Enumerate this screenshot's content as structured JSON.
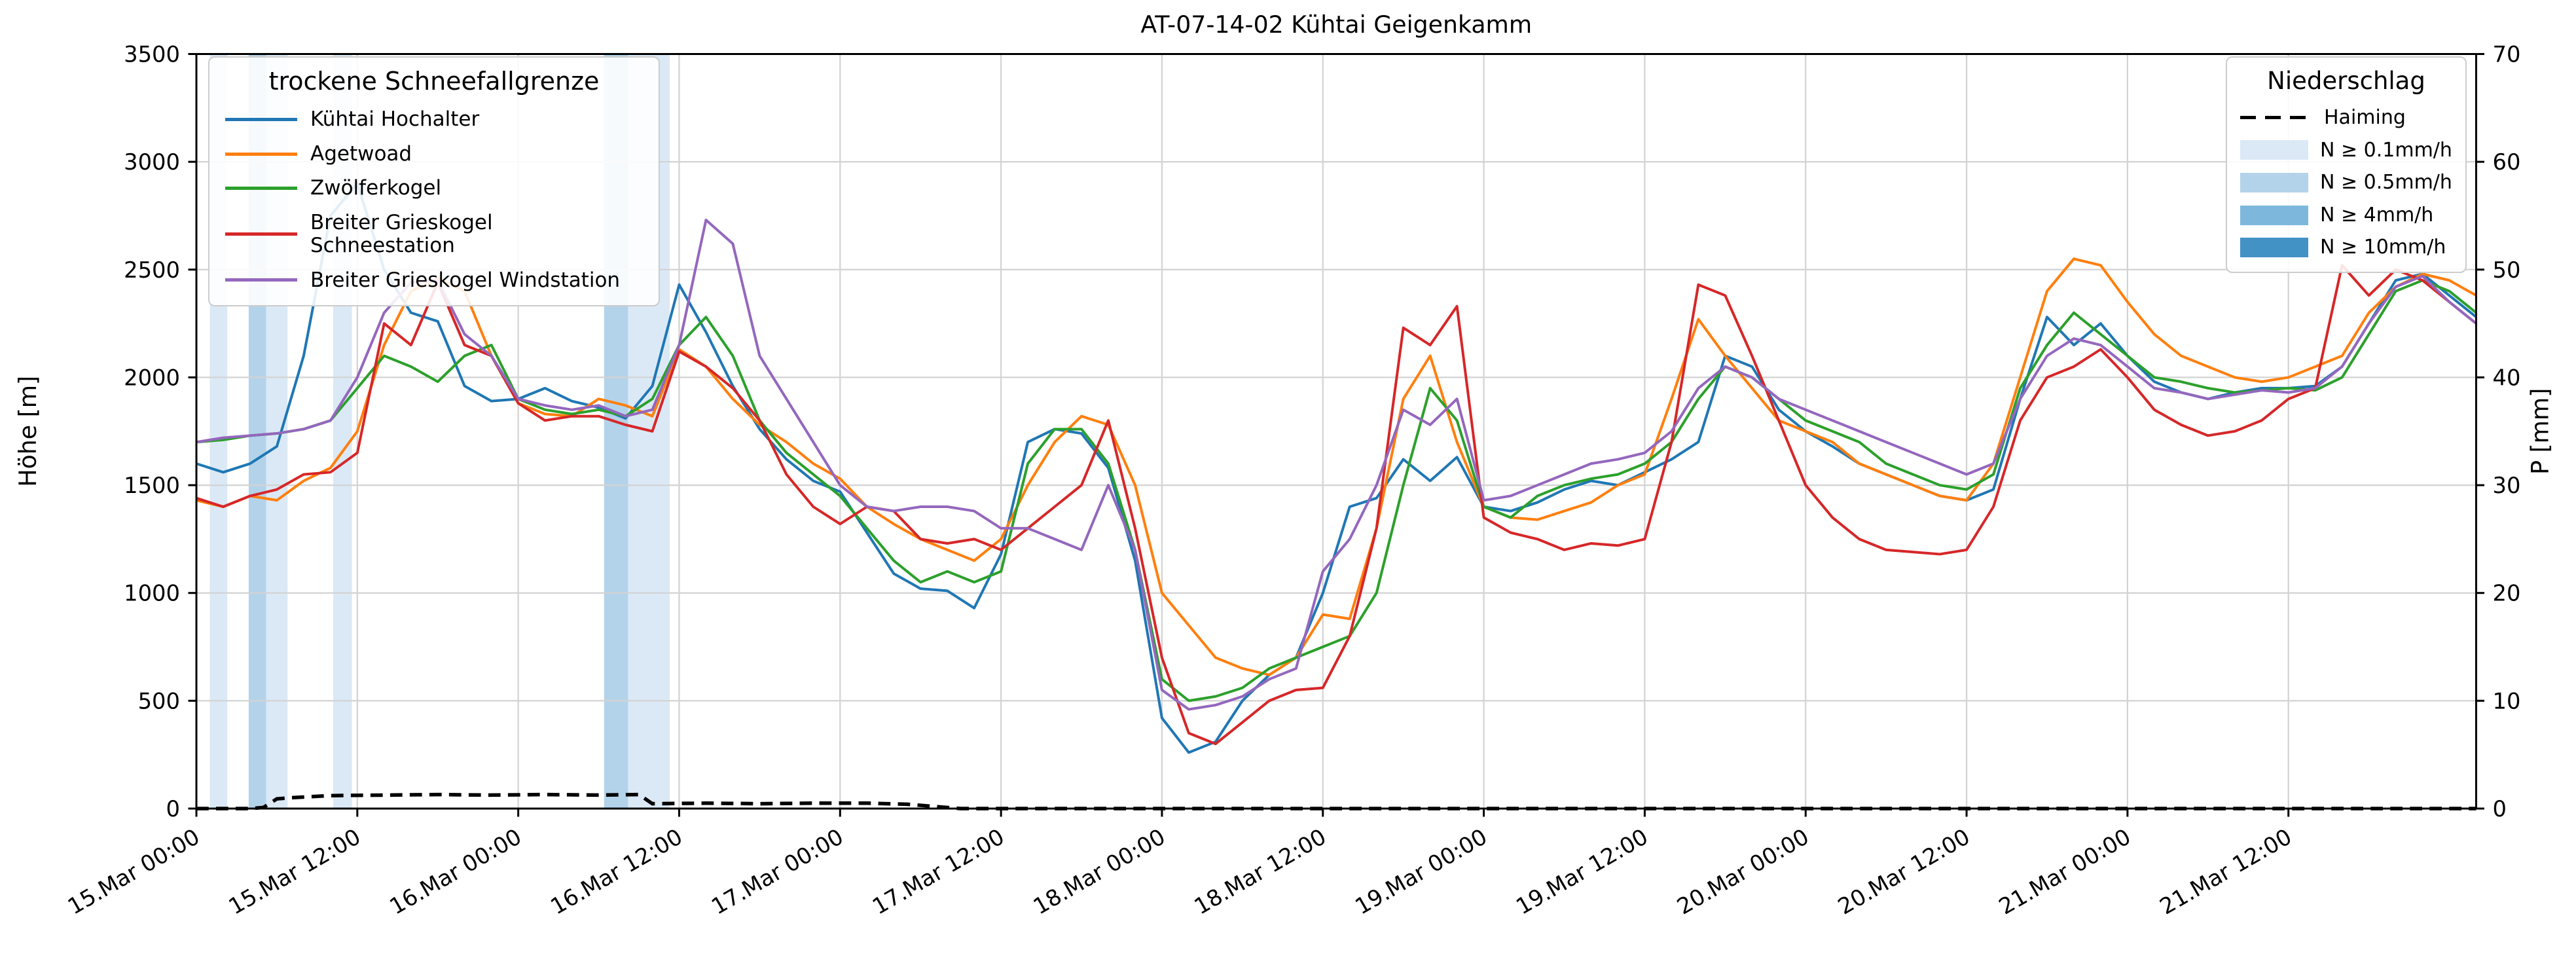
{
  "title": "AT-07-14-02 Kühtai Geigenkamm",
  "axes": {
    "y_left": {
      "label": "Höhe [m]",
      "min": 0,
      "max": 3500,
      "ticks": [
        0,
        500,
        1000,
        1500,
        2000,
        2500,
        3000,
        3500
      ]
    },
    "y_right": {
      "label": "P [mm]",
      "min": 0,
      "max": 70,
      "ticks": [
        0,
        10,
        20,
        30,
        40,
        50,
        60,
        70
      ]
    },
    "x": {
      "range_hours": [
        0,
        170
      ],
      "tick_hours": [
        0,
        12,
        24,
        36,
        48,
        60,
        72,
        84,
        96,
        108,
        120,
        132,
        144,
        156
      ],
      "tick_labels": [
        "15.Mar 00:00",
        "15.Mar 12:00",
        "16.Mar 00:00",
        "16.Mar 12:00",
        "17.Mar 00:00",
        "17.Mar 12:00",
        "18.Mar 00:00",
        "18.Mar 12:00",
        "19.Mar 00:00",
        "19.Mar 12:00",
        "20.Mar 00:00",
        "20.Mar 12:00",
        "21.Mar 00:00",
        "21.Mar 12:00"
      ]
    }
  },
  "legend_snowline": {
    "title": "trockene Schneefallgrenze"
  },
  "legend_precip": {
    "title": "Niederschlag",
    "haiming_label": "Haiming",
    "entries": [
      {
        "label": "N ≥ 0.1mm/h",
        "level": "0.1"
      },
      {
        "label": "N ≥ 0.5mm/h",
        "level": "0.5"
      },
      {
        "label": "N ≥ 4mm/h",
        "level": "4"
      },
      {
        "label": "N ≥ 10mm/h",
        "level": "10"
      }
    ]
  },
  "chart_data": {
    "type": "line",
    "title": "AT-07-14-02 Kühtai Geigenkamm",
    "xlabel": "",
    "ylabel_left": "Höhe [m]",
    "ylabel_right": "P [mm]",
    "ylim_left": [
      0,
      3500
    ],
    "ylim_right": [
      0,
      70
    ],
    "grid": true,
    "x_unit": "hours since 15.Mar 00:00",
    "x_step_hours": 2,
    "series": [
      {
        "name": "Kühtai Hochalter",
        "color": "#1f77b4",
        "values": [
          1600,
          1560,
          1600,
          1680,
          2100,
          2750,
          2900,
          2500,
          2300,
          2260,
          1960,
          1890,
          1900,
          1950,
          1890,
          1860,
          1810,
          1960,
          2430,
          2210,
          1960,
          1760,
          1620,
          1520,
          1470,
          1280,
          1090,
          1020,
          1010,
          930,
          1180,
          1700,
          1760,
          1740,
          1580,
          1150,
          420,
          260,
          310,
          500,
          620,
          700,
          1000,
          1400,
          1440,
          1620,
          1520,
          1630,
          1400,
          1380,
          1420,
          1480,
          1520,
          1500,
          1560,
          1620,
          1700,
          2100,
          2050,
          1850,
          1750,
          1680,
          1600,
          1550,
          1500,
          1450,
          1430,
          1480,
          1900,
          2280,
          2150,
          2250,
          2100,
          1980,
          1930,
          1900,
          1930,
          1950,
          1950,
          1960,
          2050,
          2250,
          2450,
          2480,
          2380,
          2280
        ]
      },
      {
        "name": "Agetwoad",
        "color": "#ff7f0e",
        "values": [
          1430,
          1400,
          1450,
          1430,
          1520,
          1580,
          1750,
          2150,
          2400,
          2460,
          2400,
          2100,
          1880,
          1830,
          1820,
          1900,
          1870,
          1820,
          2130,
          2050,
          1900,
          1780,
          1700,
          1600,
          1530,
          1400,
          1320,
          1250,
          1200,
          1150,
          1250,
          1500,
          1700,
          1820,
          1780,
          1500,
          1000,
          850,
          700,
          650,
          620,
          700,
          900,
          880,
          1300,
          1900,
          2100,
          1700,
          1400,
          1350,
          1340,
          1380,
          1420,
          1500,
          1550,
          1900,
          2270,
          2100,
          1950,
          1800,
          1750,
          1700,
          1600,
          1550,
          1500,
          1450,
          1430,
          1600,
          2000,
          2400,
          2550,
          2520,
          2350,
          2200,
          2100,
          2050,
          2000,
          1980,
          2000,
          2050,
          2100,
          2300,
          2420,
          2480,
          2450,
          2380
        ]
      },
      {
        "name": "Zwölferkogel",
        "color": "#2ca02c",
        "values": [
          1700,
          1710,
          1730,
          1740,
          1760,
          1800,
          1950,
          2100,
          2050,
          1980,
          2100,
          2150,
          1900,
          1850,
          1830,
          1850,
          1820,
          1900,
          2150,
          2280,
          2100,
          1800,
          1650,
          1550,
          1450,
          1300,
          1150,
          1050,
          1100,
          1050,
          1100,
          1600,
          1760,
          1760,
          1600,
          1200,
          600,
          500,
          520,
          560,
          650,
          700,
          750,
          800,
          1000,
          1500,
          1950,
          1800,
          1400,
          1350,
          1450,
          1500,
          1530,
          1550,
          1600,
          1700,
          1900,
          2050,
          2000,
          1900,
          1800,
          1750,
          1700,
          1600,
          1550,
          1500,
          1480,
          1550,
          1950,
          2150,
          2300,
          2200,
          2100,
          2000,
          1980,
          1950,
          1930,
          1940,
          1950,
          1940,
          2000,
          2200,
          2400,
          2450,
          2400,
          2300
        ]
      },
      {
        "name": "Breiter Grieskogel Schneestation",
        "color": "#d62728",
        "values": [
          1440,
          1400,
          1450,
          1480,
          1550,
          1560,
          1650,
          2250,
          2150,
          2440,
          2150,
          2100,
          1880,
          1800,
          1820,
          1820,
          1780,
          1750,
          2120,
          2050,
          1950,
          1800,
          1550,
          1400,
          1320,
          1400,
          1380,
          1250,
          1230,
          1250,
          1200,
          1300,
          1400,
          1500,
          1800,
          1300,
          700,
          350,
          300,
          400,
          500,
          550,
          560,
          800,
          1300,
          2230,
          2150,
          2330,
          1350,
          1280,
          1250,
          1200,
          1230,
          1220,
          1250,
          1700,
          2430,
          2380,
          2100,
          1800,
          1500,
          1350,
          1250,
          1200,
          1190,
          1180,
          1200,
          1400,
          1800,
          2000,
          2050,
          2130,
          2000,
          1850,
          1780,
          1730,
          1750,
          1800,
          1900,
          1950,
          2520,
          2380,
          2500,
          2450,
          2350,
          2250
        ]
      },
      {
        "name": "Breiter Grieskogel Windstation",
        "color": "#9467bd",
        "values": [
          1700,
          1720,
          1730,
          1740,
          1760,
          1800,
          2000,
          2300,
          2440,
          2450,
          2200,
          2100,
          1900,
          1870,
          1850,
          1870,
          1820,
          1850,
          2150,
          2730,
          2620,
          2100,
          1900,
          1700,
          1500,
          1400,
          1380,
          1400,
          1400,
          1380,
          1300,
          1300,
          1250,
          1200,
          1500,
          1200,
          550,
          460,
          480,
          520,
          600,
          650,
          1100,
          1250,
          1500,
          1850,
          1780,
          1900,
          1430,
          1450,
          1500,
          1550,
          1600,
          1620,
          1650,
          1750,
          1950,
          2050,
          2000,
          1900,
          1850,
          1800,
          1750,
          1700,
          1650,
          1600,
          1550,
          1600,
          1900,
          2100,
          2180,
          2150,
          2050,
          1950,
          1930,
          1900,
          1920,
          1940,
          1930,
          1950,
          2050,
          2250,
          2420,
          2470,
          2350,
          2250
        ]
      }
    ],
    "haiming": {
      "name": "Haiming",
      "color": "#000000",
      "style": "dashed",
      "axis": "right",
      "points": [
        [
          0,
          0
        ],
        [
          4,
          0
        ],
        [
          5,
          0.1
        ],
        [
          6,
          0.9
        ],
        [
          7,
          1.0
        ],
        [
          10,
          1.2
        ],
        [
          14,
          1.25
        ],
        [
          18,
          1.3
        ],
        [
          22,
          1.25
        ],
        [
          26,
          1.3
        ],
        [
          30,
          1.25
        ],
        [
          33,
          1.3
        ],
        [
          34,
          0.45
        ],
        [
          38,
          0.5
        ],
        [
          42,
          0.45
        ],
        [
          46,
          0.5
        ],
        [
          50,
          0.5
        ],
        [
          53,
          0.4
        ],
        [
          55,
          0.2
        ],
        [
          57,
          0
        ],
        [
          170,
          0
        ]
      ]
    },
    "precip_bands": [
      {
        "start_h": 1.0,
        "end_h": 2.3,
        "level": "0.1"
      },
      {
        "start_h": 3.9,
        "end_h": 5.2,
        "level": "0.5"
      },
      {
        "start_h": 5.2,
        "end_h": 6.8,
        "level": "0.1"
      },
      {
        "start_h": 10.2,
        "end_h": 11.6,
        "level": "0.1"
      },
      {
        "start_h": 30.4,
        "end_h": 32.2,
        "level": "0.5"
      },
      {
        "start_h": 32.2,
        "end_h": 35.3,
        "level": "0.1"
      }
    ],
    "band_colors": {
      "0.1": "#dbe9f6",
      "0.5": "#b3d3ea",
      "4": "#7db8dc",
      "10": "#4292c6"
    },
    "grid_color": "#d3d3d3"
  }
}
